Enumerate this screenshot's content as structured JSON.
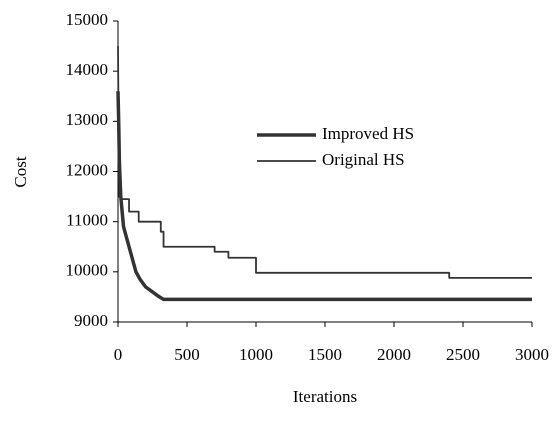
{
  "chart_data": {
    "type": "line",
    "x_label": "Iterations",
    "y_label": "Cost",
    "xlim": [
      0,
      3000
    ],
    "xticks": [
      0,
      500,
      1000,
      1500,
      2000,
      2500,
      3000
    ],
    "ylim": [
      9000,
      15000
    ],
    "yticks": [
      9000,
      10000,
      11000,
      12000,
      13000,
      14000,
      15000
    ],
    "grid": false,
    "legend": "upper right",
    "series": [
      {
        "name": "Improved HS",
        "color": "#333333",
        "width": 3.5,
        "x": [
          0,
          5,
          10,
          20,
          40,
          60,
          80,
          100,
          130,
          160,
          200,
          250,
          300,
          330,
          3000
        ],
        "values": [
          13600,
          13000,
          12200,
          11500,
          10900,
          10700,
          10500,
          10300,
          10000,
          9850,
          9700,
          9600,
          9500,
          9450,
          9450
        ]
      },
      {
        "name": "Original HS",
        "color": "#333333",
        "width": 1.8,
        "x": [
          0,
          5,
          10,
          30,
          80,
          80,
          150,
          150,
          310,
          310,
          330,
          330,
          700,
          700,
          800,
          800,
          1000,
          1000,
          2400,
          2400,
          3000
        ],
        "values": [
          14500,
          12500,
          11500,
          11450,
          11450,
          11200,
          11200,
          11000,
          11000,
          10800,
          10800,
          10500,
          10500,
          10400,
          10400,
          10280,
          10280,
          9980,
          9980,
          9880,
          9880
        ]
      }
    ]
  }
}
